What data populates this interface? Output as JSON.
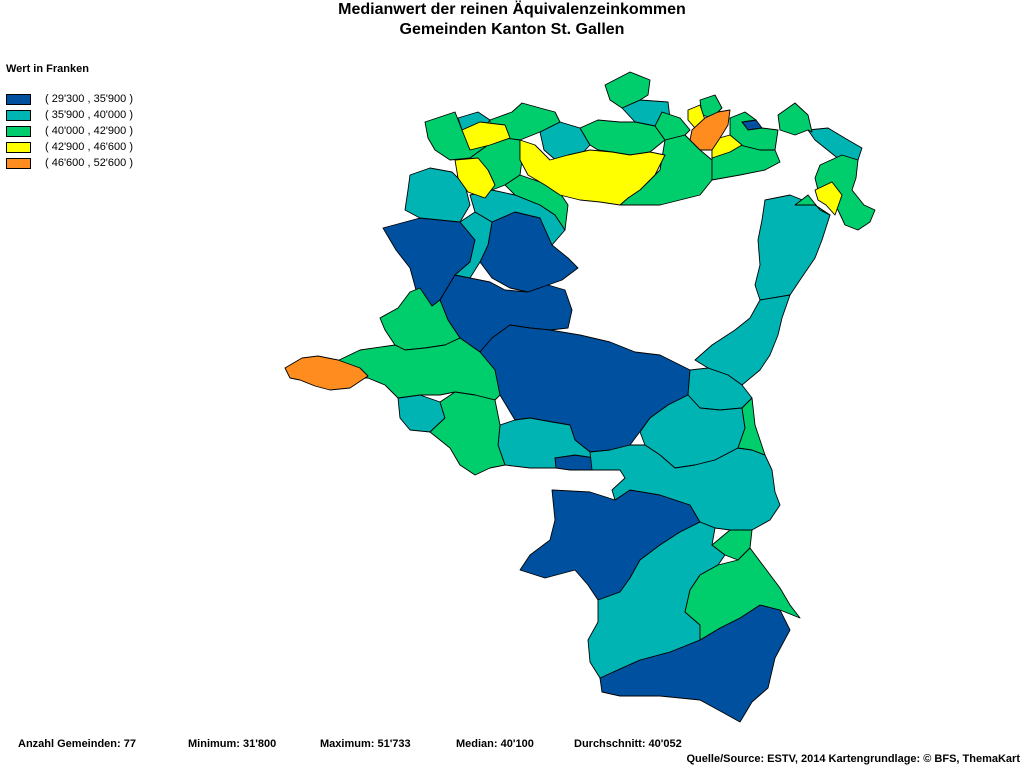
{
  "title": {
    "line1": "Medianwert der reinen Äquivalenzeinkommen",
    "line2": "Gemeinden Kanton St. Gallen"
  },
  "legend": {
    "title": "Wert in Franken",
    "classes": [
      {
        "label": "( 29'300 , 35'900 )",
        "color": "#0050a0"
      },
      {
        "label": "( 35'900 , 40'000 )",
        "color": "#00b4b4"
      },
      {
        "label": "( 40'000 , 42'900 )",
        "color": "#00cd6c"
      },
      {
        "label": "( 42'900 , 46'600 )",
        "color": "#ffff00"
      },
      {
        "label": "( 46'600 , 52'600 )",
        "color": "#ff8c1e"
      }
    ]
  },
  "stats": {
    "count": "Anzahl Gemeinden: 77",
    "minimum": "Minimum: 31'800",
    "maximum": "Maximum: 51'733",
    "median": "Median: 40'100",
    "mean": "Durchschnitt: 40'052"
  },
  "source": "Quelle/Source: ESTV, 2014 Kartengrundlage: © BFS, ThemaKart"
}
